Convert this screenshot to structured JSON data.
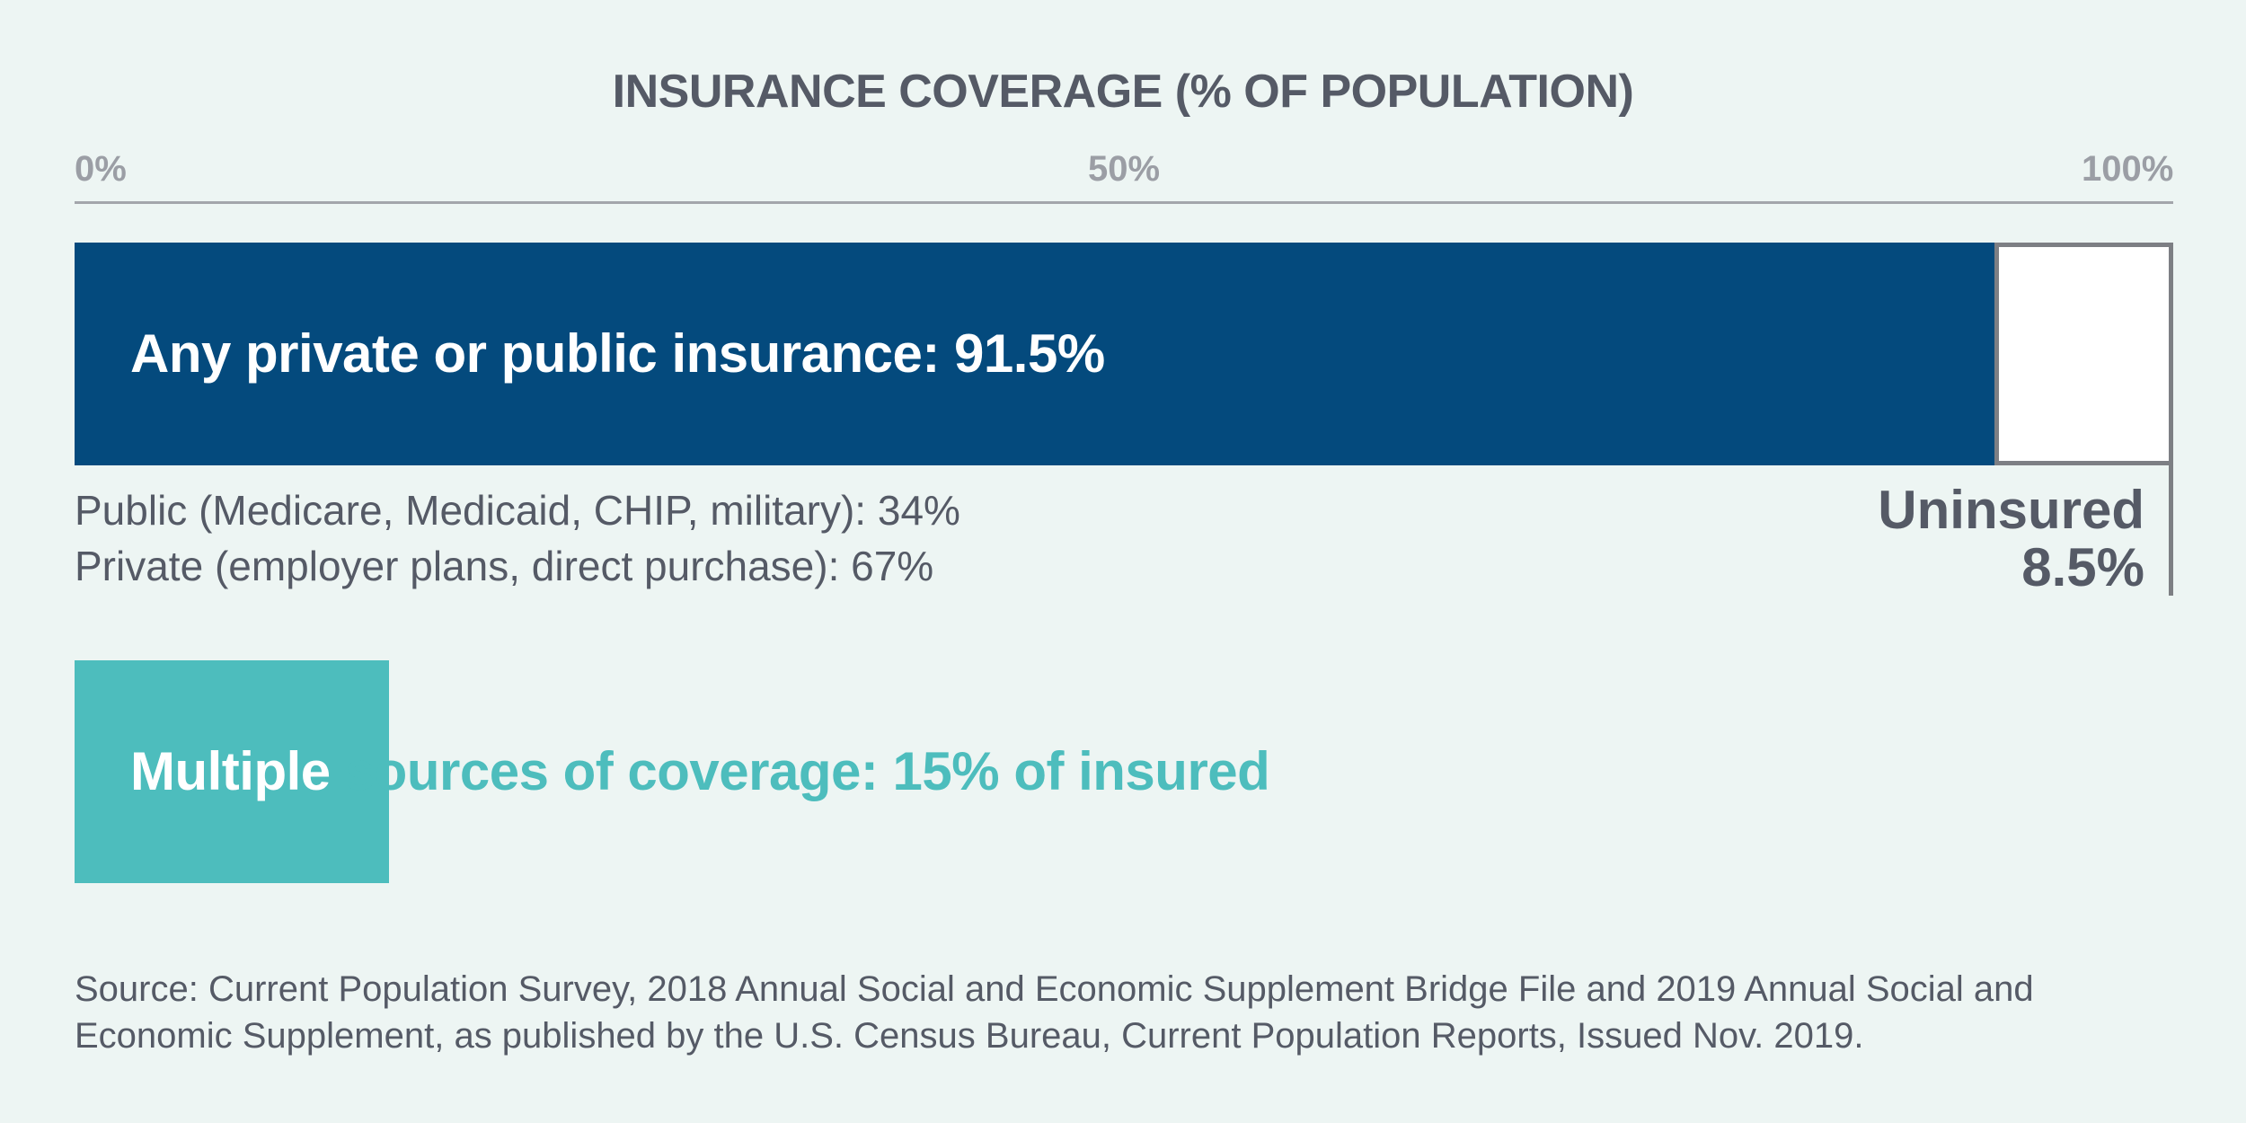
{
  "chart_data": {
    "type": "bar",
    "orientation": "horizontal",
    "stacked": true,
    "title": "INSURANCE COVERAGE (% OF POPULATION)",
    "x_ticks": [
      "0%",
      "50%",
      "100%"
    ],
    "xlim": [
      0,
      100
    ],
    "grid": false,
    "bars": [
      {
        "category": "Any private or public insurance",
        "label": "Any private or public insurance: 91.5%",
        "value": 91.5,
        "color": "#044a7d"
      },
      {
        "category": "Uninsured",
        "label_line1": "Uninsured",
        "label_line2": "8.5%",
        "value": 8.5,
        "color": "#ffffff",
        "border_color": "#7d7f84"
      }
    ],
    "breakdown": [
      {
        "text": "Public (Medicare, Medicaid, CHIP, military): 34%",
        "value": 34
      },
      {
        "text": "Private (employer plans, direct purchase): 67%",
        "value": 67
      }
    ],
    "multiple_sources": {
      "label_highlight": "Multiple",
      "label_rest": "sources of coverage: 15% of insured",
      "value": 15,
      "color": "#4dbdbd"
    }
  },
  "source": "Source: Current Population Survey, 2018 Annual Social and Economic Supplement Bridge File and 2019 Annual Social and Economic Supplement, as published by the U.S. Census Bureau, Current Population Reports, Issued Nov. 2019."
}
